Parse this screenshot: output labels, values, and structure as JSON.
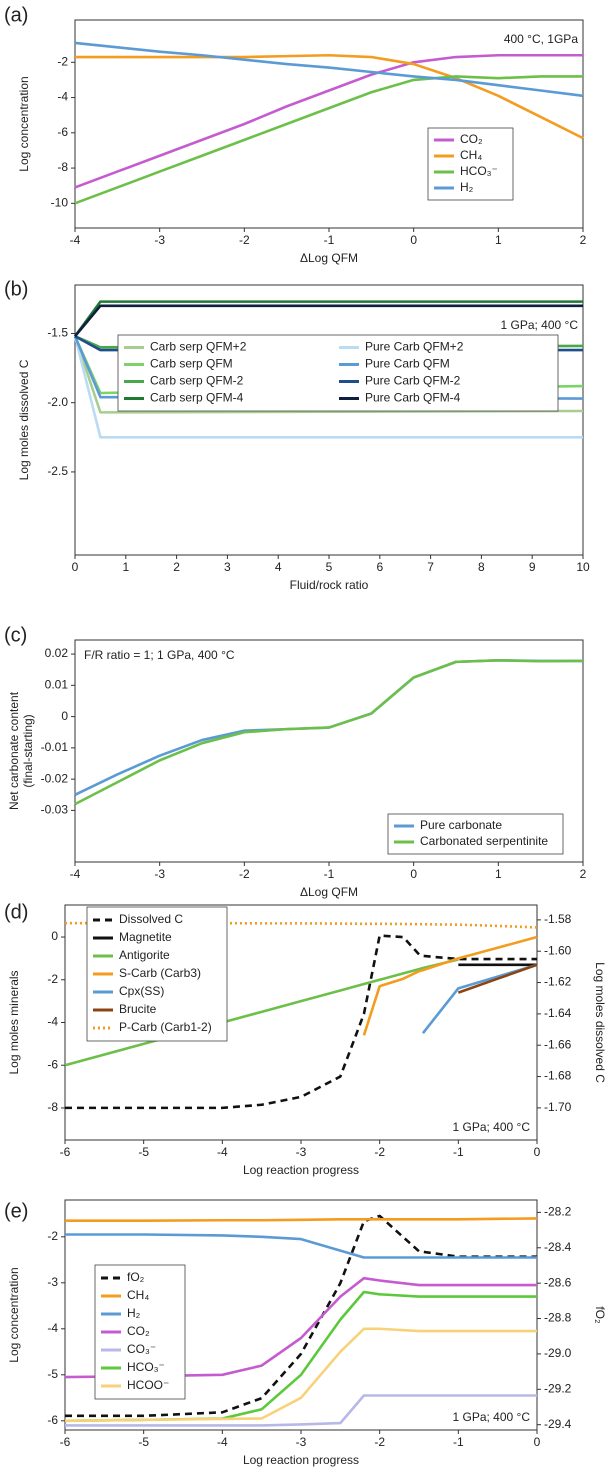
{
  "chart_data": [
    {
      "type": "line",
      "panel": "(a)",
      "annotation": "400 °C, 1GPa",
      "xlabel": "ΔLog QFM",
      "ylabel": "Log concentration",
      "x": [
        -4,
        -3.5,
        -3,
        -2.5,
        -2,
        -1.5,
        -1,
        -0.5,
        0,
        0.5,
        1,
        1.5,
        2
      ],
      "xlim": [
        -4,
        2
      ],
      "xticks": [
        -4,
        -3,
        -2,
        -1,
        0,
        1,
        2
      ],
      "ylim": [
        -11.4,
        0.4
      ],
      "yticks": [
        -2,
        -4,
        -6,
        -8,
        -10
      ],
      "legend": "lower right",
      "series": [
        {
          "name": "CO₂",
          "color": "#c45ccf",
          "values": [
            -9.1,
            -8.2,
            -7.3,
            -6.4,
            -5.5,
            -4.5,
            -3.6,
            -2.7,
            -2.0,
            -1.7,
            -1.6,
            -1.6,
            -1.6
          ]
        },
        {
          "name": "CH₄",
          "color": "#f39c1f",
          "values": [
            -1.7,
            -1.7,
            -1.7,
            -1.7,
            -1.7,
            -1.65,
            -1.6,
            -1.7,
            -2.1,
            -2.9,
            -3.9,
            -5.1,
            -6.3
          ]
        },
        {
          "name": "HCO₃⁻",
          "color": "#6cc04a",
          "values": [
            -10,
            -9.1,
            -8.2,
            -7.3,
            -6.4,
            -5.5,
            -4.6,
            -3.7,
            -3.0,
            -2.8,
            -2.9,
            -2.8,
            -2.8
          ]
        },
        {
          "name": "H₂",
          "color": "#5b9bd5",
          "values": [
            -0.9,
            -1.15,
            -1.4,
            -1.6,
            -1.85,
            -2.1,
            -2.3,
            -2.55,
            -2.8,
            -3.0,
            -3.3,
            -3.6,
            -3.9
          ]
        }
      ]
    },
    {
      "type": "line",
      "panel": "(b)",
      "annotation": "1 GPa; 400 °C",
      "xlabel": "Fluid/rock ratio",
      "ylabel": "Log moles dissolved C",
      "x": [
        0,
        0.5,
        10
      ],
      "xlim": [
        0,
        10
      ],
      "xticks": [
        0,
        1,
        2,
        3,
        4,
        5,
        6,
        7,
        8,
        9,
        10
      ],
      "ylim": [
        -3.1,
        -1.15
      ],
      "yticks": [
        -1.5,
        {
          "value": -2,
          "label": "-2.0"
        },
        -2.5
      ],
      "legend": "upper left",
      "series": [
        {
          "name": "Carb serp QFM+2",
          "color": "#a6cf8f",
          "values": [
            -1.52,
            -2.07,
            -2.06
          ]
        },
        {
          "name": "Carb serp QFM",
          "color": "#7dd36a",
          "values": [
            -1.52,
            -1.93,
            -1.88
          ]
        },
        {
          "name": "Carb serp  QFM-2",
          "color": "#4aa84a",
          "values": [
            -1.52,
            -1.6,
            -1.59
          ]
        },
        {
          "name": "Carb serp QFM-4",
          "color": "#1f7a33",
          "values": [
            -1.52,
            -1.27,
            -1.27
          ]
        },
        {
          "name": "Pure Carb QFM+2",
          "color": "#b9dcf2",
          "values": [
            -1.52,
            -2.25,
            -2.25
          ]
        },
        {
          "name": "Pure Carb QFM",
          "color": "#5b9bd5",
          "values": [
            -1.52,
            -1.96,
            -1.97
          ]
        },
        {
          "name": "Pure Carb QFM-2",
          "color": "#1f4e8c",
          "values": [
            -1.52,
            -1.62,
            -1.62
          ]
        },
        {
          "name": "Pure Carb QFM-4",
          "color": "#0f1f3d",
          "values": [
            -1.52,
            -1.3,
            -1.3
          ]
        }
      ]
    },
    {
      "type": "line",
      "panel": "(c)",
      "annotation": "F/R ratio = 1; 1 GPa, 400 °C",
      "xlabel": "ΔLog QFM",
      "ylabel": [
        "Net carbonate content",
        "(final-starting)"
      ],
      "x": [
        -4,
        -3.5,
        -3,
        -2.5,
        -2,
        -1.5,
        -1,
        -0.5,
        0,
        0.5,
        1,
        1.5,
        2
      ],
      "xlim": [
        -4,
        2
      ],
      "xticks": [
        -4,
        -3,
        -2,
        -1,
        0,
        1,
        2
      ],
      "ylim": [
        -0.0465,
        0.0245
      ],
      "yticks": [
        0.02,
        0.01,
        0,
        -0.01,
        -0.02,
        -0.03
      ],
      "legend": "lower right",
      "series": [
        {
          "name": "Pure carbonate",
          "color": "#5b9bd5",
          "values": [
            -0.025,
            -0.0185,
            -0.0125,
            -0.0075,
            -0.0045,
            -0.004,
            -0.0035,
            0.001,
            0.0125,
            0.0175,
            0.018,
            0.0178,
            0.0178
          ]
        },
        {
          "name": "Carbonated serpentinite",
          "color": "#6cc04a",
          "values": [
            -0.028,
            -0.021,
            -0.014,
            -0.0085,
            -0.005,
            -0.004,
            -0.0035,
            0.001,
            0.0125,
            0.0175,
            0.018,
            0.0177,
            0.0178
          ]
        }
      ]
    },
    {
      "type": "line",
      "panel": "(d)",
      "annotation": "1 GPa; 400 °C",
      "xlabel": "Log reaction progress",
      "ylabel": "Log moles  minerals",
      "y2label": "Log moles dissolved C",
      "x": [
        -6,
        -5,
        -4,
        -3.5,
        -3,
        -2.5,
        -2.2,
        -2,
        -1.7,
        -1.5,
        -1.45,
        -1,
        -0.5,
        0
      ],
      "xlim": [
        -6,
        0
      ],
      "xticks": [
        -6,
        -5,
        -4,
        -3,
        -2,
        -1,
        0
      ],
      "ylim": [
        -9.5,
        1.5
      ],
      "yticks": [
        0,
        -2,
        -4,
        -6,
        -8
      ],
      "y2lim": [
        -1.7205,
        -1.5705
      ],
      "y2ticks": [
        -1.58,
        {
          "value": -1.6,
          "label": "-1.60"
        },
        -1.62,
        -1.64,
        -1.66,
        -1.68,
        {
          "value": -1.7,
          "label": "-1.70"
        }
      ],
      "legend": "upper left",
      "series": [
        {
          "name": "Dissolved C",
          "color": "#111111",
          "dash": "dashed",
          "axis": "y2",
          "values": [
            -1.7,
            -1.7,
            -1.7,
            -1.698,
            -1.693,
            -1.68,
            -1.64,
            -1.59,
            -1.591,
            -1.602,
            -1.603,
            -1.605,
            -1.605,
            -1.605
          ]
        },
        {
          "name": "Magnetite",
          "color": "#111111",
          "values": [
            null,
            null,
            null,
            null,
            null,
            null,
            null,
            null,
            null,
            null,
            null,
            -1.3,
            -1.3,
            -1.3
          ]
        },
        {
          "name": "Antigorite",
          "color": "#6cc04a",
          "values": [
            -6,
            -5,
            -4,
            -3.5,
            -3,
            -2.5,
            -2.2,
            -2,
            -1.7,
            -1.5,
            -1.45,
            -1.05,
            null,
            null
          ]
        },
        {
          "name": "S-Carb (Carb3)",
          "color": "#f39c1f",
          "values": [
            null,
            null,
            null,
            null,
            null,
            null,
            -4.6,
            -2.3,
            -1.95,
            -1.6,
            -1.55,
            -1.0,
            -0.5,
            0
          ]
        },
        {
          "name": "Cpx(SS)",
          "color": "#5b9bd5",
          "values": [
            null,
            null,
            null,
            null,
            null,
            null,
            null,
            null,
            null,
            null,
            -4.5,
            -2.4,
            -1.85,
            -1.3
          ]
        },
        {
          "name": "Brucite",
          "color": "#8b4513",
          "values": [
            null,
            null,
            null,
            null,
            null,
            null,
            null,
            null,
            null,
            null,
            null,
            -2.6,
            -1.95,
            -1.3
          ]
        },
        {
          "name": "P-Carb (Carb1-2)",
          "color": "#f39c1f",
          "dash": "dotted",
          "values": [
            0.65,
            0.65,
            0.65,
            0.64,
            0.64,
            0.63,
            0.62,
            0.62,
            0.61,
            0.6,
            0.6,
            0.58,
            0.52,
            0.45
          ]
        }
      ]
    },
    {
      "type": "line",
      "panel": "(e)",
      "annotation": "1 GPa; 400 °C",
      "xlabel": "Log reaction progress",
      "ylabel": "Log concentration",
      "y2label": "fO₂",
      "x": [
        -6,
        -5,
        -4,
        -3.5,
        -3,
        -2.5,
        -2.2,
        -2,
        -1.5,
        -1,
        0
      ],
      "xlim": [
        -6,
        0
      ],
      "xticks": [
        -6,
        -5,
        -4,
        -3,
        -2,
        -1,
        0
      ],
      "ylim": [
        -6.2,
        -1.2
      ],
      "yticks": [
        -2,
        -3,
        -4,
        -5,
        -6
      ],
      "y2lim": [
        -29.43,
        -28.13
      ],
      "y2ticks": [
        -28.2,
        -28.4,
        -28.6,
        -28.8,
        {
          "value": -29,
          "label": "-29.0"
        },
        -29.2,
        -29.4
      ],
      "legend": "upper left",
      "series": [
        {
          "name": "fO₂",
          "color": "#111111",
          "dash": "dashed",
          "axis": "y2",
          "values": [
            -29.35,
            -29.35,
            -29.33,
            -29.25,
            -29.0,
            -28.6,
            -28.25,
            -28.22,
            -28.42,
            -28.45,
            -28.45
          ]
        },
        {
          "name": "CH₄",
          "color": "#f39c1f",
          "values": [
            -1.65,
            -1.65,
            -1.64,
            -1.64,
            -1.63,
            -1.62,
            -1.62,
            -1.62,
            -1.62,
            -1.62,
            -1.6
          ]
        },
        {
          "name": "H₂",
          "color": "#5b9bd5",
          "values": [
            -1.95,
            -1.95,
            -1.97,
            -2.0,
            -2.05,
            -2.3,
            -2.45,
            -2.45,
            -2.45,
            -2.45,
            -2.45
          ]
        },
        {
          "name": "CO₂",
          "color": "#c45ccf",
          "values": [
            -5.05,
            -5.03,
            -5.0,
            -4.8,
            -4.2,
            -3.3,
            -2.9,
            -2.95,
            -3.05,
            -3.05,
            -3.05
          ]
        },
        {
          "name": "CO₃⁻",
          "color": "#b8b8e8",
          "values": [
            -6.1,
            -6.1,
            -6.1,
            -6.1,
            -6.08,
            -6.05,
            -5.45,
            -5.45,
            -5.45,
            -5.45,
            -5.45
          ]
        },
        {
          "name": "HCO₃⁻",
          "color": "#5cc93c",
          "values": [
            -6.0,
            -5.98,
            -5.95,
            -5.75,
            -5.0,
            -3.8,
            -3.2,
            -3.25,
            -3.3,
            -3.3,
            -3.3
          ]
        },
        {
          "name": "HCOO⁻",
          "color": "#f8d27a",
          "values": [
            -6.0,
            -5.98,
            -5.96,
            -5.95,
            -5.5,
            -4.5,
            -4.0,
            -4.0,
            -4.05,
            -4.05,
            -4.05
          ]
        }
      ]
    }
  ]
}
